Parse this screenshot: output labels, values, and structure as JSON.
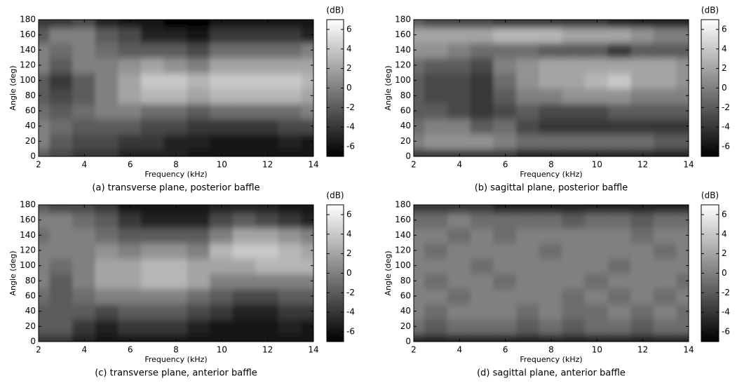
{
  "chart_data": [
    {
      "type": "heatmap",
      "caption": "(a) transverse plane, posterior baffle",
      "xlabel": "Frequency (kHz)",
      "ylabel": "Angle (deg)",
      "colorbar_label": "(dB)",
      "colormap": "gray",
      "x": [
        2,
        3,
        4,
        5,
        6,
        7,
        8,
        9,
        10,
        11,
        12,
        13,
        14
      ],
      "y": [
        0,
        20,
        40,
        60,
        80,
        100,
        120,
        140,
        160,
        180
      ],
      "xlim": [
        2,
        14
      ],
      "ylim": [
        0,
        180
      ],
      "xticks": [
        2,
        4,
        6,
        8,
        10,
        12,
        14
      ],
      "yticks": [
        0,
        20,
        40,
        60,
        80,
        100,
        120,
        140,
        160,
        180
      ],
      "clim": [
        -7,
        7
      ],
      "cticks": [
        -6,
        -4,
        -2,
        0,
        2,
        4,
        6
      ],
      "values": [
        [
          -2,
          -3,
          -4,
          -4,
          -5,
          -5,
          -5,
          -6,
          -6,
          -6,
          -6,
          -6,
          -6
        ],
        [
          0,
          -2,
          -3,
          -3,
          -4,
          -4,
          -5,
          -5,
          -6,
          -6,
          -6,
          -5,
          -6
        ],
        [
          0,
          -1,
          -2,
          -2,
          -2,
          -3,
          -3,
          -4,
          -4,
          -4,
          -4,
          -3,
          -3
        ],
        [
          -1,
          -2,
          -1,
          0,
          0,
          -1,
          -1,
          -2,
          -1,
          -1,
          -1,
          -1,
          0
        ],
        [
          -2,
          -3,
          -2,
          0,
          2,
          3,
          3,
          2,
          3,
          3,
          3,
          3,
          2
        ],
        [
          -2,
          -4,
          -2,
          0,
          2,
          4,
          4,
          3,
          4,
          4,
          4,
          4,
          3
        ],
        [
          0,
          -2,
          0,
          0,
          1,
          2,
          1,
          0,
          2,
          2,
          2,
          2,
          2
        ],
        [
          0,
          -1,
          0,
          -1,
          -2,
          -2,
          -2,
          -3,
          -1,
          -1,
          -1,
          -1,
          0
        ],
        [
          -2,
          0,
          0,
          -2,
          -3,
          -5,
          -5,
          -6,
          -4,
          -4,
          -4,
          -4,
          -5
        ],
        [
          -4,
          -4,
          -3,
          -5,
          -6,
          -6,
          -7,
          -7,
          -6,
          -6,
          -6,
          -6,
          -6
        ]
      ]
    },
    {
      "type": "heatmap",
      "caption": "(b) sagittal plane, posterior baffle",
      "xlabel": "Frequency (kHz)",
      "ylabel": "Angle (deg)",
      "colorbar_label": "(dB)",
      "colormap": "gray",
      "x": [
        2,
        3,
        4,
        5,
        6,
        7,
        8,
        9,
        10,
        11,
        12,
        13,
        14
      ],
      "y": [
        0,
        20,
        40,
        60,
        80,
        100,
        120,
        140,
        160,
        180
      ],
      "xlim": [
        2,
        14
      ],
      "ylim": [
        0,
        180
      ],
      "xticks": [
        2,
        4,
        6,
        8,
        10,
        12,
        14
      ],
      "yticks": [
        0,
        20,
        40,
        60,
        80,
        100,
        120,
        140,
        160,
        180
      ],
      "clim": [
        -7,
        7
      ],
      "cticks": [
        -6,
        -4,
        -2,
        0,
        2,
        4,
        6
      ],
      "values": [
        [
          -4,
          -4,
          -4,
          -4,
          -4,
          -5,
          -5,
          -5,
          -5,
          -5,
          -5,
          -5,
          -5
        ],
        [
          0,
          1,
          1,
          1,
          0,
          -1,
          -1,
          -1,
          -1,
          -1,
          -1,
          -2,
          -2
        ],
        [
          -1,
          0,
          0,
          -2,
          -1,
          -3,
          -4,
          -4,
          -4,
          -4,
          -4,
          -4,
          -4
        ],
        [
          -2,
          -2,
          -3,
          -4,
          -3,
          -2,
          -3,
          -3,
          -3,
          -2,
          -2,
          -2,
          -2
        ],
        [
          -2,
          -3,
          -3,
          -4,
          -2,
          0,
          0,
          1,
          1,
          1,
          0,
          0,
          0
        ],
        [
          -2,
          -3,
          -3,
          -4,
          -1,
          1,
          2,
          2,
          3,
          4,
          2,
          2,
          1
        ],
        [
          -1,
          -2,
          -2,
          -3,
          0,
          1,
          2,
          2,
          2,
          2,
          2,
          2,
          1
        ],
        [
          1,
          1,
          0,
          -1,
          -1,
          -1,
          -2,
          -2,
          -2,
          -4,
          -2,
          -2,
          -2
        ],
        [
          2,
          2,
          2,
          2,
          3,
          3,
          3,
          2,
          2,
          2,
          1,
          0,
          0
        ],
        [
          -2,
          -3,
          -3,
          -3,
          -4,
          -4,
          -4,
          -4,
          -4,
          -5,
          -5,
          -5,
          -5
        ]
      ]
    },
    {
      "type": "heatmap",
      "caption": "(c) transverse plane, anterior baffle",
      "xlabel": "Frequency (kHz)",
      "ylabel": "Angle (deg)",
      "colorbar_label": "(dB)",
      "colormap": "gray",
      "x": [
        2,
        3,
        4,
        5,
        6,
        7,
        8,
        9,
        10,
        11,
        12,
        13,
        14
      ],
      "y": [
        0,
        20,
        40,
        60,
        80,
        100,
        120,
        140,
        160,
        180
      ],
      "xlim": [
        2,
        14
      ],
      "ylim": [
        0,
        180
      ],
      "xticks": [
        2,
        4,
        6,
        8,
        10,
        12,
        14
      ],
      "yticks": [
        0,
        20,
        40,
        60,
        80,
        100,
        120,
        140,
        160,
        180
      ],
      "clim": [
        -7,
        7
      ],
      "cticks": [
        -6,
        -4,
        -2,
        0,
        2,
        4,
        6
      ],
      "values": [
        [
          -4,
          -4,
          -5,
          -6,
          -6,
          -6,
          -6,
          -6,
          -6,
          -6,
          -6,
          -6,
          -6
        ],
        [
          -2,
          -2,
          -4,
          -5,
          -4,
          -4,
          -4,
          -5,
          -6,
          -6,
          -6,
          -5,
          -6
        ],
        [
          -2,
          -2,
          -2,
          -3,
          -2,
          -2,
          -2,
          -3,
          -4,
          -5,
          -5,
          -4,
          -4
        ],
        [
          -1,
          -2,
          -1,
          0,
          0,
          0,
          0,
          -1,
          -2,
          -3,
          -3,
          -2,
          -2
        ],
        [
          0,
          -2,
          0,
          2,
          2,
          3,
          3,
          2,
          0,
          0,
          0,
          0,
          0
        ],
        [
          0,
          -1,
          0,
          2,
          2,
          3,
          3,
          2,
          2,
          2,
          3,
          3,
          3
        ],
        [
          0,
          0,
          0,
          1,
          0,
          1,
          1,
          0,
          3,
          4,
          4,
          3,
          2
        ],
        [
          -1,
          0,
          0,
          -1,
          -2,
          -2,
          -2,
          -2,
          0,
          2,
          2,
          1,
          0
        ],
        [
          0,
          0,
          -1,
          -2,
          -4,
          -5,
          -5,
          -5,
          -3,
          -2,
          -3,
          -4,
          -5
        ],
        [
          -2,
          -3,
          -3,
          -4,
          -6,
          -6,
          -6,
          -6,
          -5,
          -5,
          -5,
          -6,
          -6
        ]
      ]
    },
    {
      "type": "heatmap",
      "caption": "(d) sagittal plane, anterior baffle",
      "xlabel": "Frequency (kHz)",
      "ylabel": "Angle (deg)",
      "colorbar_label": "(dB)",
      "colormap": "gray",
      "x": [
        2,
        3,
        4,
        5,
        6,
        7,
        8,
        9,
        10,
        11,
        12,
        13,
        14
      ],
      "y": [
        0,
        20,
        40,
        60,
        80,
        100,
        120,
        140,
        160,
        180
      ],
      "xlim": [
        2,
        14
      ],
      "ylim": [
        0,
        180
      ],
      "xticks": [
        2,
        4,
        6,
        8,
        10,
        12,
        14
      ],
      "yticks": [
        0,
        20,
        40,
        60,
        80,
        100,
        120,
        140,
        160,
        180
      ],
      "clim": [
        -7,
        7
      ],
      "cticks": [
        -6,
        -4,
        -2,
        0,
        2,
        4,
        6
      ],
      "values": [
        [
          -5,
          -5,
          -5,
          -5,
          -5,
          -5,
          -5,
          -5,
          -5,
          -5,
          -5,
          -5,
          -5
        ],
        [
          -1,
          -2,
          -1,
          -1,
          -1,
          -2,
          -1,
          -2,
          -1,
          -1,
          -2,
          -1,
          -1
        ],
        [
          0,
          -1,
          0,
          0,
          0,
          -1,
          0,
          -1,
          -1,
          0,
          -1,
          0,
          -1
        ],
        [
          0,
          0,
          -1,
          0,
          0,
          0,
          0,
          -1,
          0,
          -1,
          0,
          -1,
          0
        ],
        [
          0,
          -1,
          0,
          0,
          -1,
          0,
          0,
          0,
          -1,
          0,
          0,
          0,
          -1
        ],
        [
          0,
          0,
          0,
          -1,
          0,
          0,
          0,
          0,
          0,
          -1,
          0,
          0,
          0
        ],
        [
          0,
          -1,
          0,
          0,
          0,
          0,
          -1,
          0,
          0,
          0,
          0,
          -1,
          0
        ],
        [
          0,
          0,
          -1,
          0,
          -1,
          0,
          0,
          0,
          0,
          0,
          -1,
          0,
          0
        ],
        [
          -1,
          -1,
          0,
          -1,
          -1,
          -1,
          -1,
          -2,
          -1,
          -1,
          -2,
          -1,
          -1
        ],
        [
          -4,
          -4,
          -4,
          -4,
          -5,
          -5,
          -5,
          -5,
          -5,
          -5,
          -5,
          -5,
          -5
        ]
      ]
    }
  ]
}
